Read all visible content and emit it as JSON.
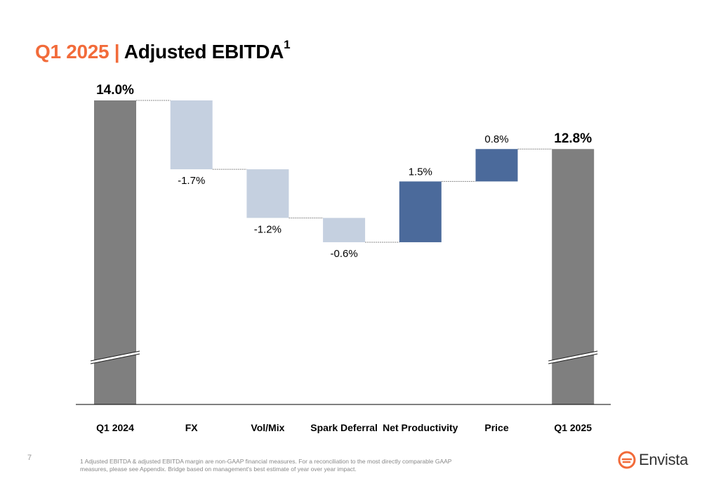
{
  "page": {
    "title_accent": "Q1 2025 | ",
    "title_main": "Adjusted EBITDA",
    "title_sup": "1",
    "page_number": "7",
    "footnote": "1 Adjusted EBITDA & adjusted EBITDA margin are non-GAAP financial measures. For a reconciliation to the most directly comparable GAAP measures, please see Appendix. Bridge based on management's best estimate of year over year impact.",
    "logo_text": "Envista",
    "colors": {
      "accent": "#f26b3a",
      "total_bar": "#7f7f7f",
      "decrease_bar": "#c5d0e0",
      "increase_bar": "#4b6a9b",
      "connector": "#888888"
    }
  },
  "chart_data": {
    "type": "bar",
    "subtype": "waterfall",
    "axis_break": true,
    "categories": [
      "Q1 2024",
      "FX",
      "Vol/Mix",
      "Spark Deferral",
      "Net Productivity",
      "Price",
      "Q1 2025"
    ],
    "values": [
      14.0,
      -1.7,
      -1.2,
      -0.6,
      1.5,
      0.8,
      12.8
    ],
    "kinds": [
      "total",
      "decrease",
      "decrease",
      "decrease",
      "increase",
      "increase",
      "total"
    ],
    "labels": [
      "14.0%",
      "-1.7%",
      "-1.2%",
      "-0.6%",
      "1.5%",
      "0.8%",
      "12.8%"
    ],
    "unit": "%"
  }
}
